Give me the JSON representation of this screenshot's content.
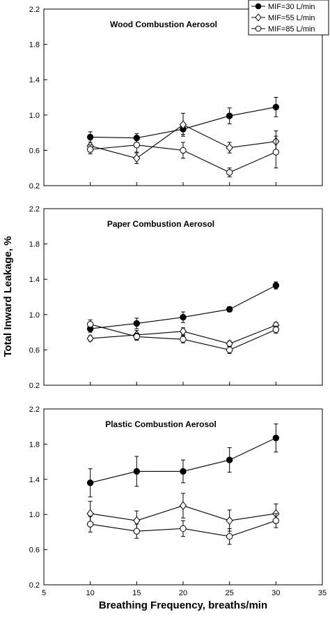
{
  "chart_data": [
    {
      "type": "line",
      "title": "Wood Combustion Aerosol",
      "x": [
        10,
        15,
        20,
        25,
        30
      ],
      "xlim": [
        5,
        35
      ],
      "ylim": [
        0.2,
        2.2
      ],
      "yticks": [
        "0.2",
        "0.6",
        "1.0",
        "1.4",
        "1.8",
        "2.2"
      ],
      "series": [
        {
          "name": "MIF=30 L/min",
          "marker": "filled-circle",
          "values": [
            0.75,
            0.74,
            0.84,
            0.99,
            1.09
          ],
          "error": [
            0.06,
            0.05,
            0.06,
            0.09,
            0.11
          ]
        },
        {
          "name": "MIF=55 L/min",
          "marker": "open-diamond",
          "values": [
            0.65,
            0.51,
            0.89,
            0.63,
            0.7
          ],
          "error": [
            0.07,
            0.06,
            0.13,
            0.06,
            0.12
          ]
        },
        {
          "name": "MIF=85 L/min",
          "marker": "open-circle",
          "values": [
            0.61,
            0.66,
            0.6,
            0.35,
            0.58
          ],
          "error": [
            0.05,
            0.08,
            0.09,
            0.05,
            0.18
          ]
        }
      ]
    },
    {
      "type": "line",
      "title": "Paper Combustion Aerosol",
      "x": [
        10,
        15,
        20,
        25,
        30
      ],
      "xlim": [
        5,
        35
      ],
      "ylim": [
        0.2,
        2.2
      ],
      "yticks": [
        "0.2",
        "0.6",
        "1.0",
        "1.4",
        "1.8",
        "2.2"
      ],
      "series": [
        {
          "name": "MIF=30 L/min",
          "marker": "filled-circle",
          "values": [
            0.84,
            0.9,
            0.97,
            1.06,
            1.33
          ],
          "error": [
            0.04,
            0.06,
            0.06,
            0.03,
            0.04
          ]
        },
        {
          "name": "MIF=55 L/min",
          "marker": "open-diamond",
          "values": [
            0.73,
            0.77,
            0.81,
            0.67,
            0.88
          ],
          "error": [
            0.03,
            0.05,
            0.04,
            0.03,
            0.03
          ]
        },
        {
          "name": "MIF=85 L/min",
          "marker": "open-circle",
          "values": [
            0.89,
            0.75,
            0.72,
            0.6,
            0.83
          ],
          "error": [
            0.05,
            0.04,
            0.04,
            0.04,
            0.04
          ]
        }
      ]
    },
    {
      "type": "line",
      "title": "Plastic Combustion Aerosol",
      "x": [
        10,
        15,
        20,
        25,
        30
      ],
      "xlim": [
        5,
        35
      ],
      "ylim": [
        0.2,
        2.2
      ],
      "yticks": [
        "0.2",
        "0.6",
        "1.0",
        "1.4",
        "1.8",
        "2.2"
      ],
      "xticks": [
        "5",
        "10",
        "15",
        "20",
        "25",
        "30",
        "35"
      ],
      "series": [
        {
          "name": "MIF=30 L/min",
          "marker": "filled-circle",
          "values": [
            1.36,
            1.49,
            1.49,
            1.62,
            1.87
          ],
          "error": [
            0.16,
            0.17,
            0.13,
            0.14,
            0.16
          ]
        },
        {
          "name": "MIF=55 L/min",
          "marker": "open-diamond",
          "values": [
            1.01,
            0.93,
            1.1,
            0.93,
            1.01
          ],
          "error": [
            0.14,
            0.11,
            0.14,
            0.12,
            0.11
          ]
        },
        {
          "name": "MIF=85 L/min",
          "marker": "open-circle",
          "values": [
            0.89,
            0.81,
            0.84,
            0.75,
            0.93
          ],
          "error": [
            0.09,
            0.08,
            0.09,
            0.09,
            0.08
          ]
        }
      ]
    }
  ],
  "ylabel": "Total Inward Leakage, %",
  "xlabel": "Breathing Frequency, breaths/min",
  "legend": {
    "placement": "top-right",
    "entries": [
      "MIF=30 L/min",
      "MIF=55 L/min",
      "MIF=85 L/min"
    ]
  }
}
